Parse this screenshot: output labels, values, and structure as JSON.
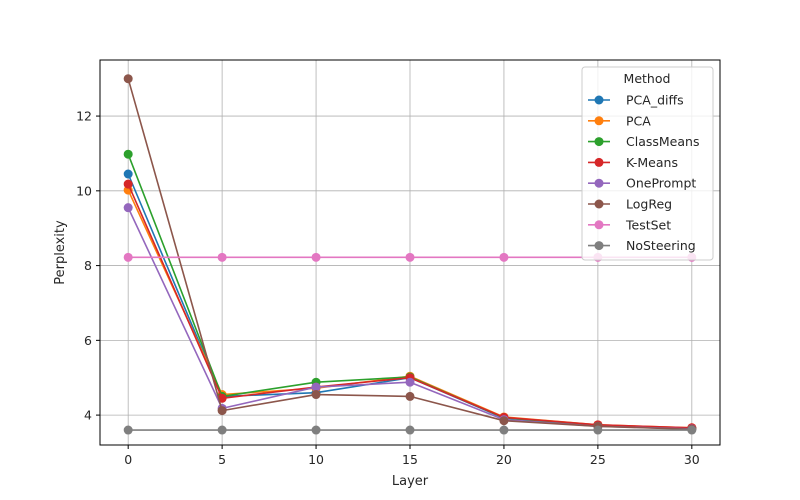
{
  "chart_data": {
    "type": "line",
    "title": "",
    "xlabel": "Layer",
    "ylabel": "Perplexity",
    "x": [
      0,
      5,
      10,
      15,
      20,
      25,
      30
    ],
    "xticks": [
      0,
      5,
      10,
      15,
      20,
      25,
      30
    ],
    "yticks": [
      4,
      6,
      8,
      10,
      12
    ],
    "xlim": [
      -1.5,
      31.5
    ],
    "ylim": [
      3.2,
      13.5
    ],
    "grid": true,
    "legend": {
      "title": "Method",
      "position": "top-right"
    },
    "series": [
      {
        "name": "PCA_diffs",
        "color": "#1f77b4",
        "values": [
          10.45,
          4.5,
          4.6,
          5.0,
          3.92,
          3.72,
          3.65
        ]
      },
      {
        "name": "PCA",
        "color": "#ff7f0e",
        "values": [
          10.02,
          4.55,
          4.72,
          5.04,
          3.95,
          3.74,
          3.66
        ]
      },
      {
        "name": "ClassMeans",
        "color": "#2ca02c",
        "values": [
          10.98,
          4.5,
          4.88,
          5.02,
          3.93,
          3.73,
          3.65
        ]
      },
      {
        "name": "K-Means",
        "color": "#d62728",
        "values": [
          10.18,
          4.45,
          4.75,
          5.0,
          3.94,
          3.74,
          3.66
        ]
      },
      {
        "name": "OnePrompt",
        "color": "#9467bd",
        "values": [
          9.55,
          4.18,
          4.75,
          4.88,
          3.88,
          3.7,
          3.63
        ]
      },
      {
        "name": "LogReg",
        "color": "#8c564b",
        "values": [
          13.0,
          4.12,
          4.55,
          4.5,
          3.85,
          3.7,
          3.62
        ]
      },
      {
        "name": "TestSet",
        "color": "#e377c2",
        "values": [
          8.22,
          8.22,
          8.22,
          8.22,
          8.22,
          8.22,
          8.22
        ]
      },
      {
        "name": "NoSteering",
        "color": "#7f7f7f",
        "values": [
          3.6,
          3.6,
          3.6,
          3.6,
          3.6,
          3.6,
          3.6
        ]
      }
    ]
  }
}
